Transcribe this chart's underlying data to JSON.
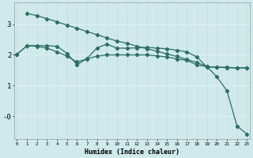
{
  "xlabel": "Humidex (Indice chaleur)",
  "background_color": "#ceeaea",
  "grid_color": "#e8f8f8",
  "line_color": "#2e6e62",
  "x_ticks": [
    0,
    1,
    2,
    3,
    4,
    5,
    6,
    7,
    8,
    9,
    10,
    11,
    12,
    13,
    14,
    15,
    16,
    17,
    18,
    19,
    20,
    21,
    22,
    23
  ],
  "yticks": [
    0,
    1,
    2,
    3
  ],
  "ylabels": [
    "-0",
    "1",
    "2",
    "3"
  ],
  "ylim": [
    -0.75,
    3.7
  ],
  "xlim": [
    -0.3,
    23.3
  ],
  "line1_x": [
    1,
    2,
    3,
    4,
    5,
    6,
    7,
    8,
    9,
    10,
    11,
    12,
    13,
    14,
    15,
    16,
    17,
    18,
    19,
    20,
    21,
    22,
    23
  ],
  "line1_y": [
    3.35,
    3.28,
    3.18,
    3.08,
    2.97,
    2.87,
    2.76,
    2.66,
    2.55,
    2.45,
    2.38,
    2.28,
    2.2,
    2.12,
    2.03,
    1.95,
    1.85,
    1.75,
    1.62,
    1.28,
    0.83,
    -0.32,
    -0.58
  ],
  "line2_x": [
    0,
    1,
    2,
    3,
    4,
    5,
    6,
    7,
    8,
    9,
    10,
    11,
    12,
    13,
    14,
    15,
    16,
    17,
    18,
    19,
    20,
    21,
    22,
    23
  ],
  "line2_y": [
    2.02,
    2.3,
    2.3,
    2.3,
    2.28,
    2.05,
    1.68,
    1.88,
    2.23,
    2.35,
    2.22,
    2.22,
    2.23,
    2.25,
    2.22,
    2.2,
    2.15,
    2.1,
    1.93,
    1.6,
    1.6,
    1.6,
    1.57,
    1.58
  ],
  "line3_x": [
    0,
    1,
    2,
    3,
    4,
    5,
    6,
    7,
    8,
    9,
    10,
    11,
    12,
    13,
    14,
    15,
    16,
    17,
    18,
    19,
    20,
    21,
    22,
    23
  ],
  "line3_y": [
    2.02,
    2.3,
    2.28,
    2.22,
    2.1,
    1.96,
    1.77,
    1.87,
    1.96,
    2.0,
    2.0,
    2.0,
    2.0,
    2.0,
    1.97,
    1.93,
    1.87,
    1.82,
    1.67,
    1.62,
    1.6,
    1.58,
    1.58,
    1.58
  ]
}
